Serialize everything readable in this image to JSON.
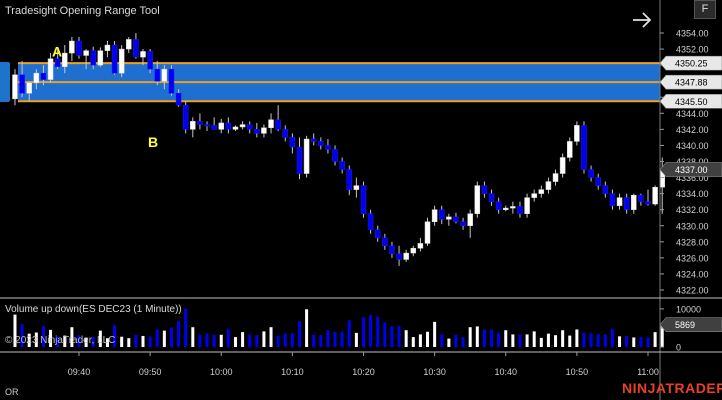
{
  "window": {
    "title": "Tradesight Opening Range Tool",
    "f_button": "F",
    "corner_label": "OR",
    "brand": "NINJATRADER"
  },
  "price_panel": {
    "y_axis_ticks": [
      "4354.00",
      "4352.00",
      "4350.00",
      "4348.00",
      "4346.00",
      "4344.00",
      "4342.00",
      "4340.00",
      "4338.00",
      "4336.00",
      "4334.00",
      "4332.00",
      "4330.00",
      "4328.00",
      "4326.00",
      "4324.00",
      "4322.00"
    ],
    "opening_range": {
      "high": "4350.25",
      "mid": "4347.88",
      "low": "4345.50"
    },
    "last_price": "4337.00",
    "markers": [
      {
        "label": "A",
        "price": 4351.7
      },
      {
        "label": "B",
        "price": 4340.4
      }
    ],
    "colors": {
      "up": "#ffffff",
      "down": "#0000ee",
      "range_fill": "#1f6fd0",
      "range_line": "#f0a020",
      "marker": "#ffff33",
      "last_price_badge": "#404040"
    }
  },
  "volume_panel": {
    "title": "Volume up down(ES DEC23 (1 Minute))",
    "copyright": "© 2023 NinjaTrader, LLC",
    "last_volume": "5869",
    "y_axis_ticks": [
      "10000",
      "5000",
      "0"
    ]
  },
  "x_axis": {
    "ticks": [
      "09:40",
      "09:50",
      "10:00",
      "10:10",
      "10:20",
      "10:30",
      "10:40",
      "10:50",
      "11:00"
    ]
  },
  "chart_data": {
    "type": "candlestick",
    "instrument": "ES DEC23",
    "interval": "1 Minute",
    "time_range": [
      "09:31",
      "11:01"
    ],
    "ylim": [
      4321.5,
      4355
    ],
    "candles_ohlcv": [
      [
        4345.8,
        4349.5,
        4345.0,
        4348.8,
        8500
      ],
      [
        4348.8,
        4350.5,
        4346.0,
        4346.5,
        6000
      ],
      [
        4346.5,
        4348.0,
        4345.5,
        4347.8,
        3500
      ],
      [
        4347.8,
        4349.5,
        4347.0,
        4349.0,
        3800
      ],
      [
        4349.0,
        4350.0,
        4347.5,
        4348.2,
        5500
      ],
      [
        4348.2,
        4351.5,
        4347.8,
        4350.8,
        4500
      ],
      [
        4350.8,
        4352.0,
        4349.5,
        4349.8,
        2800
      ],
      [
        4349.8,
        4352.5,
        4349.0,
        4351.5,
        3000
      ],
      [
        4351.5,
        4353.5,
        4350.5,
        4353.0,
        5200
      ],
      [
        4353.0,
        4353.5,
        4350.8,
        4351.2,
        3100
      ],
      [
        4351.2,
        4352.0,
        4349.5,
        4351.8,
        2500
      ],
      [
        4351.8,
        4352.3,
        4349.5,
        4350.0,
        2600
      ],
      [
        4350.0,
        4352.2,
        4349.8,
        4351.8,
        4300
      ],
      [
        4351.8,
        4353.0,
        4351.0,
        4352.5,
        2300
      ],
      [
        4352.5,
        4353.0,
        4348.8,
        4349.0,
        5800
      ],
      [
        4349.0,
        4352.5,
        4348.5,
        4352.0,
        2700
      ],
      [
        4352.0,
        4353.5,
        4351.5,
        4353.2,
        2300
      ],
      [
        4353.2,
        4354.0,
        4350.8,
        4351.0,
        3200
      ],
      [
        4351.0,
        4352.0,
        4350.0,
        4351.7,
        2900
      ],
      [
        4351.7,
        4352.0,
        4349.0,
        4349.5,
        2800
      ],
      [
        4349.5,
        4350.5,
        4347.5,
        4348.0,
        4600
      ],
      [
        4348.0,
        4350.0,
        4347.0,
        4349.5,
        4300
      ],
      [
        4349.5,
        4350.0,
        4346.2,
        4346.5,
        5100
      ],
      [
        4346.5,
        4347.0,
        4344.8,
        4345.0,
        6800
      ],
      [
        4345.0,
        4345.5,
        4341.5,
        4342.0,
        10100
      ],
      [
        4342.0,
        4343.5,
        4341.0,
        4343.0,
        5200
      ],
      [
        4343.0,
        4344.0,
        4342.0,
        4342.6,
        3200
      ],
      [
        4342.6,
        4343.0,
        4341.8,
        4342.5,
        3600
      ],
      [
        4342.5,
        4343.5,
        4342.0,
        4342.0,
        3200
      ],
      [
        4342.0,
        4343.3,
        4341.5,
        4342.8,
        3200
      ],
      [
        4342.8,
        4343.5,
        4341.5,
        4342.0,
        4600
      ],
      [
        4342.0,
        4342.5,
        4341.8,
        4342.3,
        2600
      ],
      [
        4342.3,
        4343.0,
        4342.0,
        4342.6,
        3900
      ],
      [
        4342.6,
        4343.0,
        4341.5,
        4342.0,
        3300
      ],
      [
        4342.0,
        4342.8,
        4341.0,
        4341.5,
        3100
      ],
      [
        4341.5,
        4342.6,
        4341.0,
        4342.2,
        4100
      ],
      [
        4342.2,
        4344.0,
        4341.5,
        4343.2,
        5200
      ],
      [
        4343.2,
        4345.0,
        4341.8,
        4342.0,
        3000
      ],
      [
        4342.0,
        4342.5,
        4340.5,
        4341.0,
        3600
      ],
      [
        4341.0,
        4341.5,
        4339.0,
        4339.8,
        3600
      ],
      [
        4339.8,
        4341.0,
        4335.8,
        4336.5,
        6800
      ],
      [
        4336.5,
        4341.2,
        4336.0,
        4340.8,
        9900
      ],
      [
        4340.8,
        4341.5,
        4340.0,
        4340.5,
        3200
      ],
      [
        4340.5,
        4341.0,
        4339.5,
        4340.0,
        3100
      ],
      [
        4340.0,
        4340.8,
        4339.0,
        4339.5,
        4400
      ],
      [
        4339.5,
        4340.0,
        4337.5,
        4338.0,
        4000
      ],
      [
        4338.0,
        4338.5,
        4336.5,
        4337.0,
        4000
      ],
      [
        4337.0,
        4337.5,
        4333.8,
        4334.5,
        7000
      ],
      [
        4334.5,
        4336.0,
        4333.5,
        4335.0,
        3700
      ],
      [
        4335.0,
        4335.5,
        4331.0,
        4331.5,
        7800
      ],
      [
        4331.5,
        4332.0,
        4329.0,
        4329.5,
        8400
      ],
      [
        4329.5,
        4330.0,
        4328.0,
        4328.5,
        8000
      ],
      [
        4328.5,
        4329.0,
        4327.0,
        4327.5,
        6400
      ],
      [
        4327.5,
        4328.0,
        4326.0,
        4326.5,
        5500
      ],
      [
        4326.5,
        4327.5,
        4325.0,
        4325.8,
        5500
      ],
      [
        4325.8,
        4327.0,
        4325.5,
        4326.6,
        4400
      ],
      [
        4326.6,
        4327.5,
        4326.2,
        4327.2,
        2600
      ],
      [
        4327.2,
        4328.5,
        4326.8,
        4327.8,
        3300
      ],
      [
        4327.8,
        4331.0,
        4327.5,
        4330.5,
        4000
      ],
      [
        4330.5,
        4332.5,
        4330.0,
        4332.0,
        6600
      ],
      [
        4332.0,
        4332.5,
        4330.2,
        4330.8,
        3300
      ],
      [
        4330.8,
        4331.5,
        4330.0,
        4331.1,
        2200
      ],
      [
        4331.1,
        4331.6,
        4330.3,
        4330.5,
        3200
      ],
      [
        4330.5,
        4331.0,
        4329.5,
        4330.0,
        2600
      ],
      [
        4330.0,
        4332.0,
        4328.5,
        4331.5,
        5200
      ],
      [
        4331.5,
        4335.5,
        4331.0,
        4335.0,
        5400
      ],
      [
        4335.0,
        4335.5,
        4333.5,
        4334.0,
        4600
      ],
      [
        4334.0,
        4334.5,
        4332.5,
        4333.0,
        4600
      ],
      [
        4333.0,
        4333.5,
        4331.5,
        4332.0,
        3700
      ],
      [
        4332.0,
        4332.5,
        4331.8,
        4332.2,
        4400
      ],
      [
        4332.2,
        4333.0,
        4331.5,
        4332.4,
        3300
      ],
      [
        4332.4,
        4333.0,
        4331.0,
        4331.5,
        3300
      ],
      [
        4331.5,
        4334.0,
        4331.0,
        4333.5,
        3300
      ],
      [
        4333.5,
        4334.5,
        4333.0,
        4334.0,
        4100
      ],
      [
        4334.0,
        4335.0,
        4333.5,
        4334.5,
        2400
      ],
      [
        4334.5,
        4336.0,
        4334.0,
        4335.5,
        3500
      ],
      [
        4335.5,
        4337.0,
        4335.0,
        4336.5,
        3100
      ],
      [
        4336.5,
        4339.0,
        4336.0,
        4338.5,
        4400
      ],
      [
        4338.5,
        4341.0,
        4338.0,
        4340.5,
        3000
      ],
      [
        4340.5,
        4343.0,
        4340.0,
        4342.5,
        4600
      ],
      [
        4342.5,
        4343.0,
        4336.5,
        4337.0,
        3700
      ],
      [
        4337.0,
        4337.5,
        4335.5,
        4336.0,
        3600
      ],
      [
        4336.0,
        4336.5,
        4334.5,
        4335.0,
        3300
      ],
      [
        4335.0,
        4335.5,
        4333.5,
        4334.0,
        3300
      ],
      [
        4334.0,
        4334.5,
        4332.0,
        4332.5,
        4700
      ],
      [
        4332.5,
        4334.0,
        4332.0,
        4333.5,
        2800
      ],
      [
        4333.5,
        4334.0,
        4331.5,
        4332.0,
        2900
      ],
      [
        4332.0,
        4334.0,
        4331.5,
        4333.8,
        2500
      ],
      [
        4333.8,
        4334.0,
        4332.5,
        4333.0,
        2600
      ],
      [
        4333.0,
        4334.5,
        4332.5,
        4332.7,
        2500
      ],
      [
        4332.7,
        4335.0,
        4332.5,
        4334.8,
        3900
      ]
    ],
    "last_candle": [
      4334.8,
      4338.5,
      4331.5,
      4337.0,
      5869
    ],
    "opening_range": {
      "high": 4350.25,
      "mid": 4347.88,
      "low": 4345.5
    }
  }
}
